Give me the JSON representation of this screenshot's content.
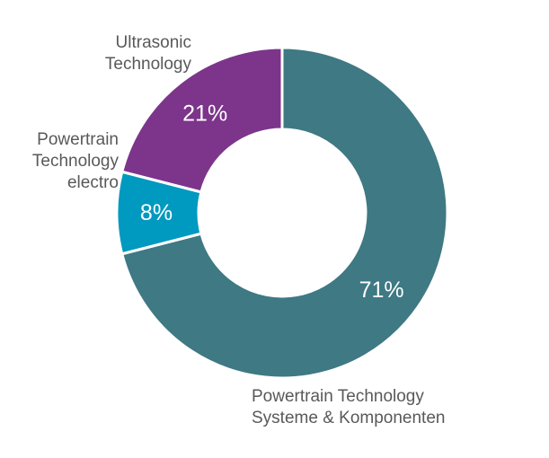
{
  "chart_data": {
    "type": "pie",
    "variant": "donut",
    "start": "top",
    "direction": "clockwise",
    "slices": [
      {
        "label": "Powertrain Technology Systeme & Komponenten",
        "lines": [
          "Powertrain Technology",
          "Systeme & Komponenten"
        ],
        "value": 71,
        "value_label": "71%",
        "color": "#3e7984"
      },
      {
        "label": "Powertrain Technology electro",
        "lines": [
          "Powertrain",
          "Technology",
          "electro"
        ],
        "value": 8,
        "value_label": "8%",
        "color": "#0099bf"
      },
      {
        "label": "Ultrasonic Technology",
        "lines": [
          "Ultrasonic",
          "Technology"
        ],
        "value": 21,
        "value_label": "21%",
        "color": "#7c358b"
      }
    ],
    "legend": "none"
  }
}
